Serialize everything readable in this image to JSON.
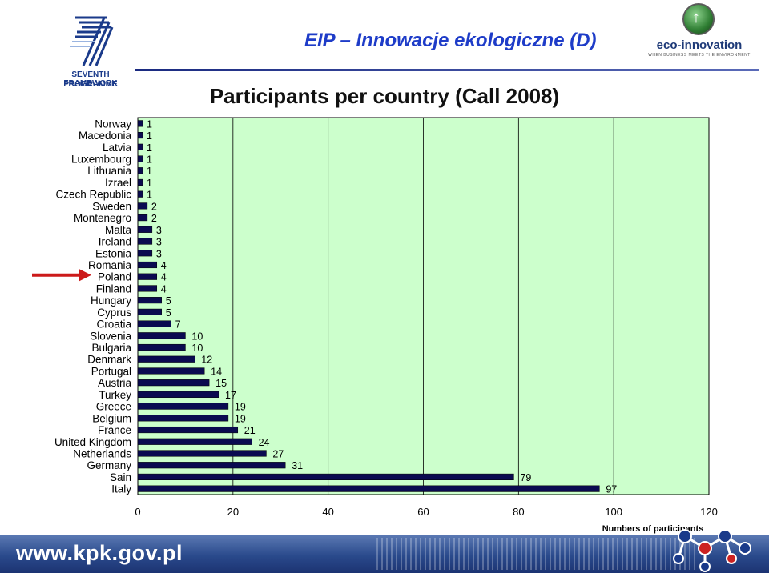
{
  "header": {
    "title": "EIP – Innowacje ekologiczne (D)",
    "fp_logo_line1": "SEVENTH FRAMEWORK",
    "fp_logo_line2": "PROGRAMME",
    "eco_logo_text": "eco-innovation",
    "eco_logo_tagline": "WHEN BUSINESS MEETS THE ENVIRONMENT"
  },
  "footer": {
    "url": "www.kpk.gov.pl"
  },
  "colors": {
    "bar_fill": "#0a0a50",
    "plot_background": "#ccffcc",
    "title_blue": "#1e3cc8",
    "highlight_arrow": "#cc1a1a"
  },
  "chart_data": {
    "type": "bar",
    "orientation": "horizontal",
    "title": "Participants per country (Call 2008)",
    "xlabel": "Numbers of participants",
    "ylabel": "",
    "xlim": [
      0,
      120
    ],
    "xticks": [
      0,
      20,
      40,
      60,
      80,
      100,
      120
    ],
    "grid": "vertical",
    "categories": [
      "Norway",
      "Macedonia",
      "Latvia",
      "Luxembourg",
      "Lithuania",
      "Izrael",
      "Czech Republic",
      "Sweden",
      "Montenegro",
      "Malta",
      "Ireland",
      "Estonia",
      "Romania",
      "Poland",
      "Finland",
      "Hungary",
      "Cyprus",
      "Croatia",
      "Slovenia",
      "Bulgaria",
      "Denmark",
      "Portugal",
      "Austria",
      "Turkey",
      "Greece",
      "Belgium",
      "France",
      "United Kingdom",
      "Netherlands",
      "Germany",
      "Sain",
      "Italy"
    ],
    "values": [
      1,
      1,
      1,
      1,
      1,
      1,
      1,
      2,
      2,
      3,
      3,
      3,
      4,
      4,
      4,
      5,
      5,
      7,
      10,
      10,
      12,
      14,
      15,
      17,
      19,
      19,
      21,
      24,
      27,
      31,
      79,
      97
    ],
    "highlighted_category": "Poland"
  }
}
